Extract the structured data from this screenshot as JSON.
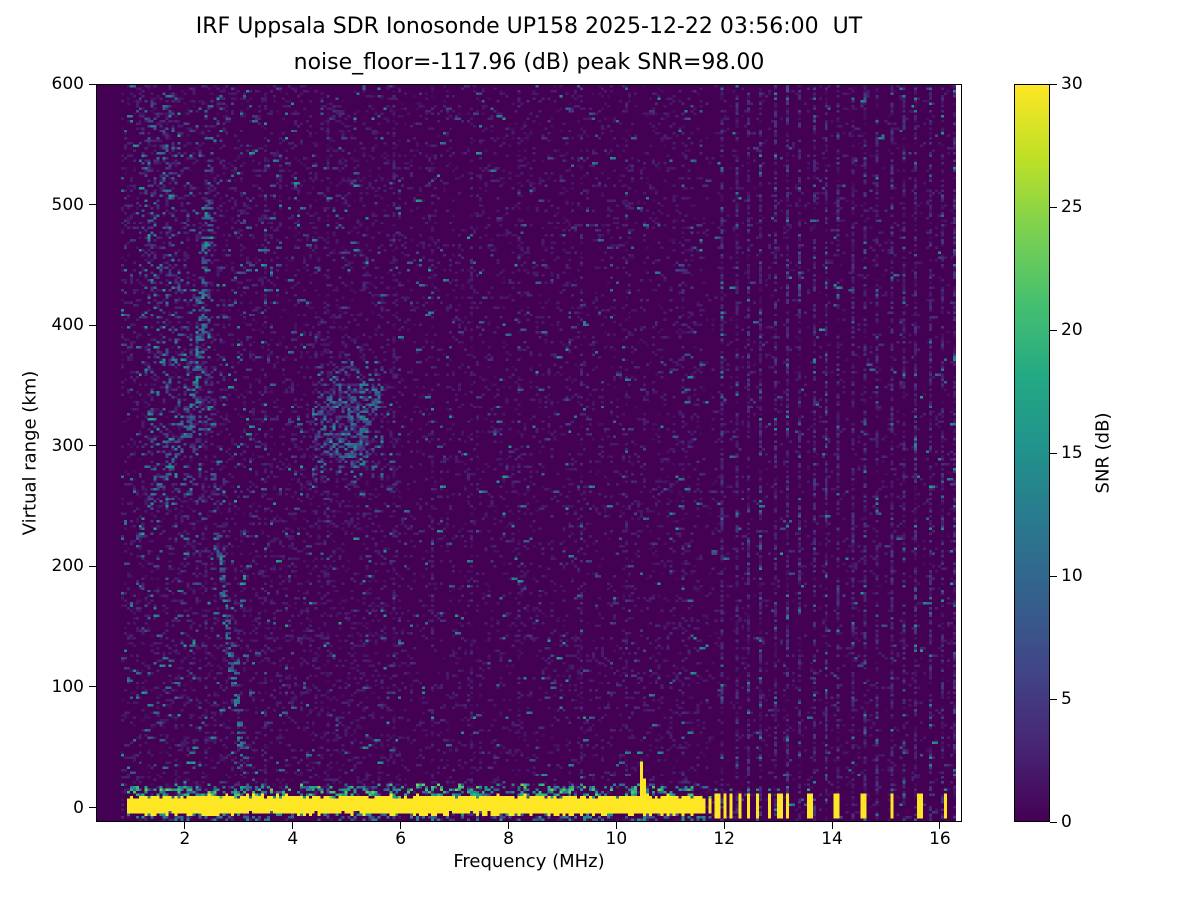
{
  "chart_data": {
    "type": "heatmap",
    "title": "IRF Uppsala SDR Ionosonde UP158 2025-12-22 03:56:00  UT",
    "subtitle": "noise_floor=-117.96 (dB) peak SNR=98.00",
    "xlabel": "Frequency (MHz)",
    "ylabel": "Virtual range (km)",
    "xlim": [
      0.35,
      16.41
    ],
    "ylim": [
      -12,
      600
    ],
    "xticks": [
      2,
      4,
      6,
      8,
      10,
      12,
      14,
      16
    ],
    "yticks": [
      0,
      100,
      200,
      300,
      400,
      500,
      600
    ],
    "grid": false,
    "noise_floor_db": -117.96,
    "peak_snr_db": 98.0,
    "colorbar": {
      "label": "SNR (dB)",
      "min": 0,
      "max": 30,
      "ticks": [
        0,
        5,
        10,
        15,
        20,
        25,
        30
      ],
      "colormap": "viridis",
      "stops": [
        "#440154",
        "#482475",
        "#414487",
        "#355f8d",
        "#2a788e",
        "#21918c",
        "#22a884",
        "#44bf70",
        "#7ad151",
        "#bddf26",
        "#fde725"
      ]
    },
    "features": {
      "data_extent_mhz": [
        0.8,
        16.35
      ],
      "background_snr_db": 0,
      "ground_return": {
        "freq_start_mhz": 0.95,
        "freq_end_mhz": 11.72,
        "center_km": 0,
        "half_thickness_km": 6,
        "snr_db": 30,
        "spike": {
          "freq_mhz": 10.42,
          "top_km": 38
        }
      },
      "isolated_pulses_mhz": [
        11.83,
        11.98,
        12.13,
        12.28,
        12.45,
        12.62,
        12.8,
        13.0,
        13.18,
        13.52,
        14.02,
        14.55,
        15.08,
        15.58,
        16.08
      ],
      "echo_traces": [
        {
          "name": "rising F-region echo",
          "snr_db": 16,
          "points_mhz_km": [
            [
              1.35,
              258
            ],
            [
              1.55,
              270
            ],
            [
              1.75,
              285
            ],
            [
              1.95,
              302
            ],
            [
              2.1,
              326
            ],
            [
              2.2,
              362
            ],
            [
              2.28,
              408
            ],
            [
              2.34,
              455
            ],
            [
              2.4,
              505
            ]
          ]
        },
        {
          "name": "descending echo",
          "snr_db": 16,
          "points_mhz_km": [
            [
              2.55,
              228
            ],
            [
              2.68,
              185
            ],
            [
              2.8,
              142
            ],
            [
              2.9,
              100
            ],
            [
              3.0,
              62
            ],
            [
              3.1,
              30
            ]
          ]
        },
        {
          "name": "mid-band echo cluster",
          "snr_db": 13,
          "points_mhz_km": [
            [
              4.45,
              332
            ],
            [
              4.6,
              312
            ],
            [
              4.78,
              300
            ],
            [
              4.95,
              296
            ],
            [
              5.12,
              300
            ],
            [
              5.3,
              312
            ],
            [
              5.45,
              330
            ],
            [
              5.58,
              350
            ]
          ]
        }
      ],
      "diffuse_clouds": [
        {
          "f": [
            1.1,
            2.7
          ],
          "h": [
            150,
            595
          ],
          "n": 230,
          "vmax": 13
        },
        {
          "f": [
            1.3,
            2.5
          ],
          "h": [
            250,
            440
          ],
          "n": 260,
          "vmax": 16
        },
        {
          "f": [
            1.15,
            1.8
          ],
          "h": [
            440,
            595
          ],
          "n": 160,
          "vmax": 15
        },
        {
          "f": [
            4.35,
            5.65
          ],
          "h": [
            270,
            370
          ],
          "n": 300,
          "vmax": 15
        },
        {
          "f": [
            4.6,
            5.4
          ],
          "h": [
            290,
            345
          ],
          "n": 150,
          "vmax": 18
        }
      ],
      "rfi_strong_mhz": [
        11.95,
        12.19,
        12.43,
        12.67,
        12.91,
        13.15,
        13.39,
        13.63,
        13.87,
        14.11,
        14.35,
        14.59,
        14.83,
        15.07,
        15.31,
        15.55,
        15.79,
        16.03,
        16.27
      ],
      "rfi_faint_mhz": [
        2.35,
        3.45,
        4.62,
        5.85,
        6.55,
        7.3,
        8.15,
        9.35,
        10.15,
        11.2
      ],
      "noise_speckle_snr_range_db": [
        1,
        20
      ]
    }
  }
}
